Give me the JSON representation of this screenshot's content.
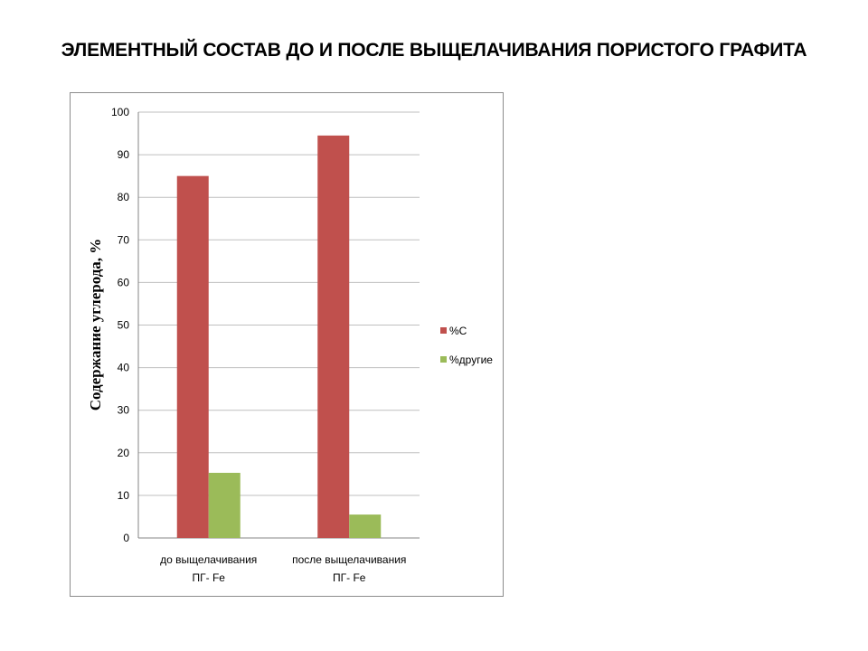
{
  "slide": {
    "title": "ЭЛЕМЕНТНЫЙ СОСТАВ ДО И ПОСЛЕ  ВЫЩЕЛАЧИВАНИЯ ПОРИСТОГО ГРАФИТА"
  },
  "chart_data": {
    "type": "bar",
    "title": "",
    "xlabel": "",
    "ylabel": "Содержание углерода,  %",
    "categories": [
      [
        "до выщелачивания",
        "ПГ- Fe"
      ],
      [
        "после выщелачивания",
        "ПГ- Fe"
      ]
    ],
    "series": [
      {
        "name": "%C",
        "values": [
          85,
          94.5
        ],
        "color": "#c0504d"
      },
      {
        "name": "%другие",
        "values": [
          15.3,
          5.5
        ],
        "color": "#9bbb59"
      }
    ],
    "ylim": [
      0,
      100
    ],
    "yticks": [
      0,
      10,
      20,
      30,
      40,
      50,
      60,
      70,
      80,
      90,
      100
    ],
    "grid": true,
    "legend_position": "right"
  }
}
